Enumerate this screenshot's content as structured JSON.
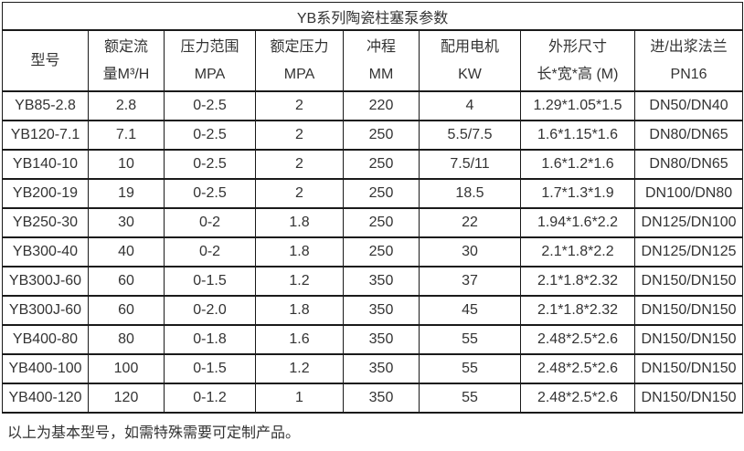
{
  "title": "YB系列陶瓷柱塞泵参数",
  "table": {
    "columns": [
      {
        "line1": "型号",
        "line2": ""
      },
      {
        "line1": "额定流",
        "line2": "量M³/H"
      },
      {
        "line1": "压力范围",
        "line2": "MPA"
      },
      {
        "line1": "额定压力",
        "line2": "MPA"
      },
      {
        "line1": "冲程",
        "line2": "MM"
      },
      {
        "line1": "配用电机",
        "line2": "KW"
      },
      {
        "line1": "外形尺寸",
        "line2": "长*宽*高 (M)"
      },
      {
        "line1": "进/出浆法兰",
        "line2": "PN16"
      }
    ],
    "rows": [
      [
        "YB85-2.8",
        "2.8",
        "0-2.5",
        "2",
        "220",
        "4",
        "1.29*1.05*1.5",
        "DN50/DN40"
      ],
      [
        "YB120-7.1",
        "7.1",
        "0-2.5",
        "2",
        "250",
        "5.5/7.5",
        "1.6*1.15*1.6",
        "DN80/DN65"
      ],
      [
        "YB140-10",
        "10",
        "0-2.5",
        "2",
        "250",
        "7.5/11",
        "1.6*1.2*1.6",
        "DN80/DN65"
      ],
      [
        "YB200-19",
        "19",
        "0-2.5",
        "2",
        "250",
        "18.5",
        "1.7*1.3*1.9",
        "DN100/DN80"
      ],
      [
        "YB250-30",
        "30",
        "0-2",
        "1.8",
        "250",
        "22",
        "1.94*1.6*2.2",
        "DN125/DN100"
      ],
      [
        "YB300-40",
        "40",
        "0-2",
        "1.8",
        "250",
        "30",
        "2.1*1.8*2.2",
        "DN125/DN125"
      ],
      [
        "YB300J-60",
        "60",
        "0-1.5",
        "1.2",
        "350",
        "37",
        "2.1*1.8*2.32",
        "DN150/DN150"
      ],
      [
        "YB300J-60",
        "60",
        "0-2.0",
        "1.8",
        "350",
        "45",
        "2.1*1.8*2.32",
        "DN150/DN150"
      ],
      [
        "YB400-80",
        "80",
        "0-1.8",
        "1.6",
        "350",
        "55",
        "2.48*2.5*2.6",
        "DN150/DN150"
      ],
      [
        "YB400-100",
        "100",
        "0-1.5",
        "1.2",
        "350",
        "55",
        "2.48*2.5*2.6",
        "DN150/DN150"
      ],
      [
        "YB400-120",
        "120",
        "0-1.2",
        "1",
        "350",
        "55",
        "2.48*2.5*2.6",
        "DN150/DN150"
      ]
    ]
  },
  "footer_note": "以上为基本型号，如需特殊需要可定制产品。",
  "colors": {
    "border": "#1a1a1a",
    "text": "#333333",
    "background": "#ffffff"
  }
}
